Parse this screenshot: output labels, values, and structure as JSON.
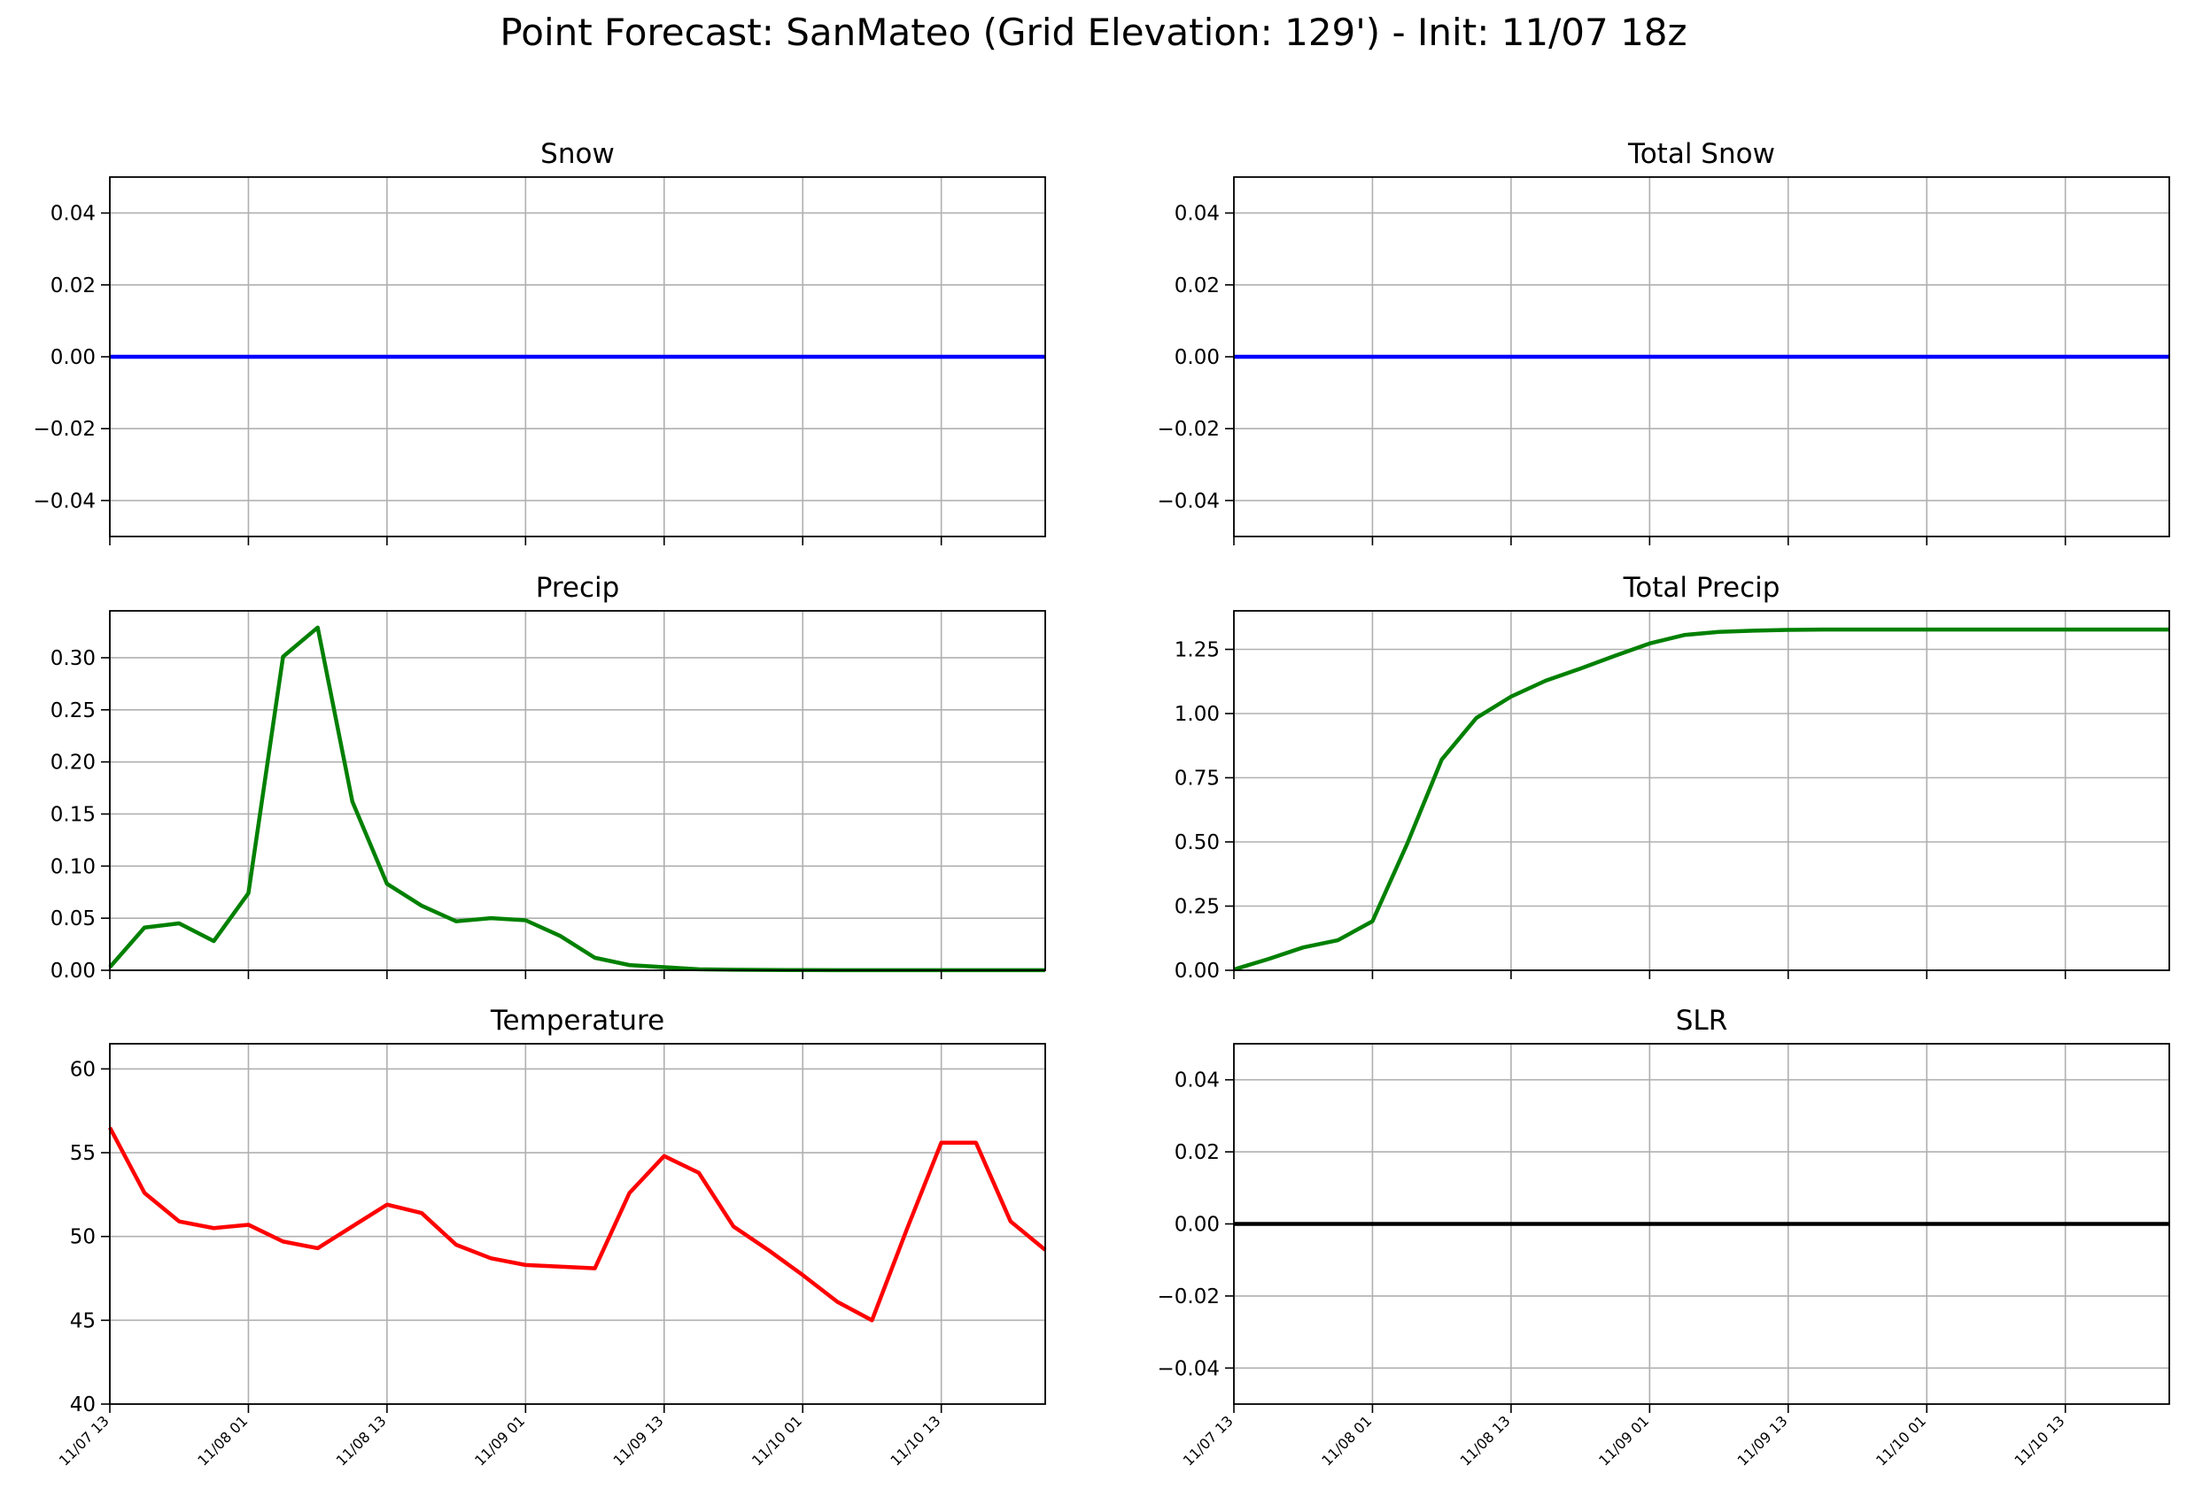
{
  "figure": {
    "title": "Point Forecast: SanMateo (Grid Elevation: 129') - Init: 11/07 18z"
  },
  "x_tick_labels": [
    "11/07 13",
    "11/08 01",
    "11/08 13",
    "11/09 01",
    "11/09 13",
    "11/10 01",
    "11/10 13"
  ],
  "x_tick_hours": [
    0,
    12,
    24,
    36,
    48,
    60,
    72
  ],
  "x_range_hours": [
    0,
    81
  ],
  "chart_data": [
    {
      "id": "snow",
      "type": "line",
      "title": "Snow",
      "color": "#0000ff",
      "ylim": [
        -0.05,
        0.05
      ],
      "yticks": [
        -0.04,
        -0.02,
        0.0,
        0.02,
        0.04
      ],
      "ytick_labels": [
        "−0.04",
        "−0.02",
        "0.00",
        "0.02",
        "0.04"
      ],
      "x": [
        0,
        81
      ],
      "y": [
        0,
        0
      ]
    },
    {
      "id": "total-snow",
      "type": "line",
      "title": "Total Snow",
      "color": "#0000ff",
      "ylim": [
        -0.05,
        0.05
      ],
      "yticks": [
        -0.04,
        -0.02,
        0.0,
        0.02,
        0.04
      ],
      "ytick_labels": [
        "−0.04",
        "−0.02",
        "0.00",
        "0.02",
        "0.04"
      ],
      "x": [
        0,
        81
      ],
      "y": [
        0,
        0
      ]
    },
    {
      "id": "precip",
      "type": "line",
      "title": "Precip",
      "color": "#008000",
      "ylim": [
        0,
        0.345
      ],
      "yticks": [
        0,
        0.05,
        0.1,
        0.15,
        0.2,
        0.25,
        0.3
      ],
      "ytick_labels": [
        "0.00",
        "0.05",
        "0.10",
        "0.15",
        "0.20",
        "0.25",
        "0.30"
      ],
      "x": [
        0,
        3,
        6,
        9,
        12,
        15,
        18,
        21,
        24,
        27,
        30,
        33,
        36,
        39,
        42,
        45,
        48,
        51,
        54,
        57,
        60,
        63,
        66,
        69,
        72,
        75,
        78,
        81
      ],
      "y": [
        0.003,
        0.041,
        0.045,
        0.028,
        0.074,
        0.301,
        0.329,
        0.162,
        0.083,
        0.062,
        0.047,
        0.05,
        0.048,
        0.033,
        0.012,
        0.005,
        0.003,
        0.001,
        0.0005,
        0.0003,
        0.0002,
        0.0001,
        0.0001,
        0.0001,
        0.0001,
        0.0001,
        0.0001,
        0.0001
      ]
    },
    {
      "id": "total-precip",
      "type": "line",
      "title": "Total Precip",
      "color": "#008000",
      "ylim": [
        0,
        1.4
      ],
      "yticks": [
        0,
        0.25,
        0.5,
        0.75,
        1.0,
        1.25
      ],
      "ytick_labels": [
        "0.00",
        "0.25",
        "0.50",
        "0.75",
        "1.00",
        "1.25"
      ],
      "x": [
        0,
        3,
        6,
        9,
        12,
        15,
        18,
        21,
        24,
        27,
        30,
        33,
        36,
        39,
        42,
        45,
        48,
        51,
        54,
        57,
        60,
        63,
        66,
        69,
        72,
        75,
        78,
        81
      ],
      "y": [
        0.003,
        0.044,
        0.089,
        0.117,
        0.191,
        0.492,
        0.821,
        0.983,
        1.066,
        1.128,
        1.175,
        1.225,
        1.273,
        1.306,
        1.318,
        1.323,
        1.326,
        1.327,
        1.327,
        1.327,
        1.327,
        1.327,
        1.327,
        1.327,
        1.327,
        1.327,
        1.327,
        1.327
      ]
    },
    {
      "id": "temperature",
      "type": "line",
      "title": "Temperature",
      "color": "#ff0000",
      "ylim": [
        40,
        61.5
      ],
      "yticks": [
        40,
        45,
        50,
        55,
        60
      ],
      "ytick_labels": [
        "40",
        "45",
        "50",
        "55",
        "60"
      ],
      "x": [
        0,
        3,
        6,
        9,
        12,
        15,
        18,
        21,
        24,
        27,
        30,
        33,
        36,
        39,
        42,
        45,
        48,
        51,
        54,
        57,
        60,
        63,
        66,
        69,
        72,
        75,
        78,
        81
      ],
      "y": [
        56.5,
        52.6,
        50.9,
        50.5,
        50.7,
        49.7,
        49.3,
        50.6,
        51.9,
        51.4,
        49.5,
        48.7,
        48.3,
        48.2,
        48.1,
        52.6,
        54.8,
        53.8,
        50.6,
        49.2,
        47.7,
        46.1,
        45.0,
        50.4,
        55.6,
        55.6,
        50.9,
        49.2
      ]
    },
    {
      "id": "slr",
      "type": "line",
      "title": "SLR",
      "color": "#000000",
      "ylim": [
        -0.05,
        0.05
      ],
      "yticks": [
        -0.04,
        -0.02,
        0.0,
        0.02,
        0.04
      ],
      "ytick_labels": [
        "−0.04",
        "−0.02",
        "0.00",
        "0.02",
        "0.04"
      ],
      "x": [
        0,
        81
      ],
      "y": [
        0,
        0
      ]
    }
  ]
}
